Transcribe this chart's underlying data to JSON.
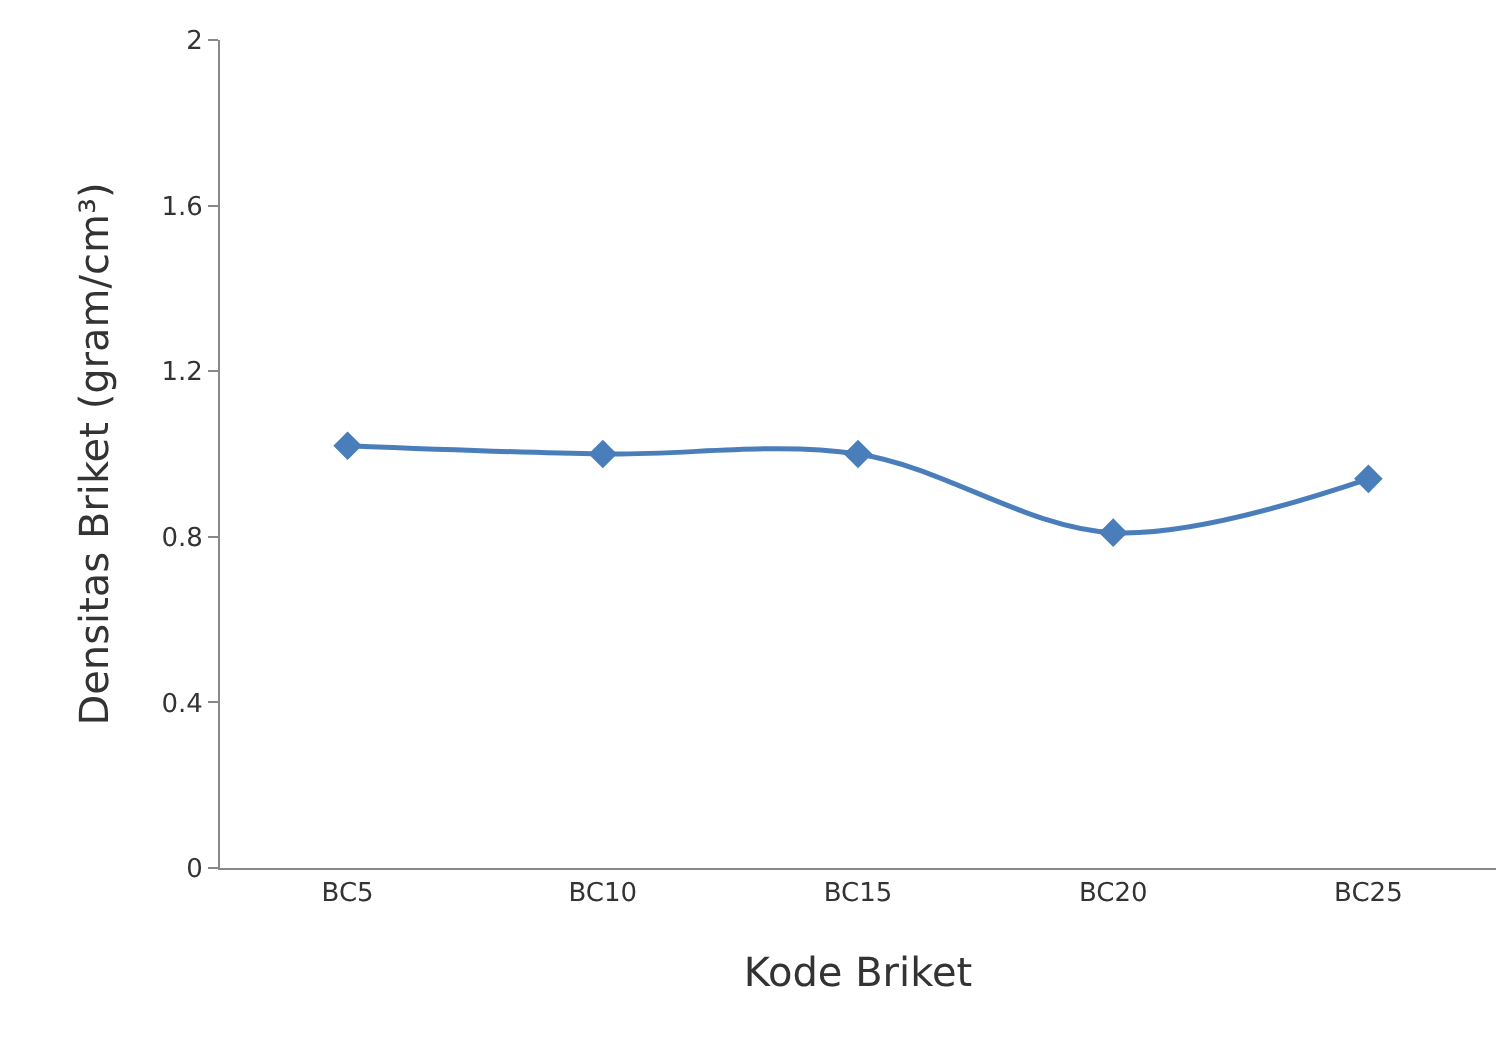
{
  "chart_data": {
    "type": "line",
    "xlabel": "Kode Briket",
    "ylabel": "Densitas Briket (gram/cm³)",
    "categories": [
      "BC5",
      "BC10",
      "BC15",
      "BC20",
      "BC25"
    ],
    "series": [
      {
        "color": "#4a7ebb",
        "values": [
          1.02,
          1.0,
          1.0,
          0.81,
          0.94
        ]
      }
    ],
    "ylim": [
      0,
      2
    ],
    "yticks": [
      0,
      0.4,
      0.8,
      1.2,
      1.6,
      2
    ],
    "legend": false,
    "marker": "diamond",
    "line_style": "solid"
  }
}
